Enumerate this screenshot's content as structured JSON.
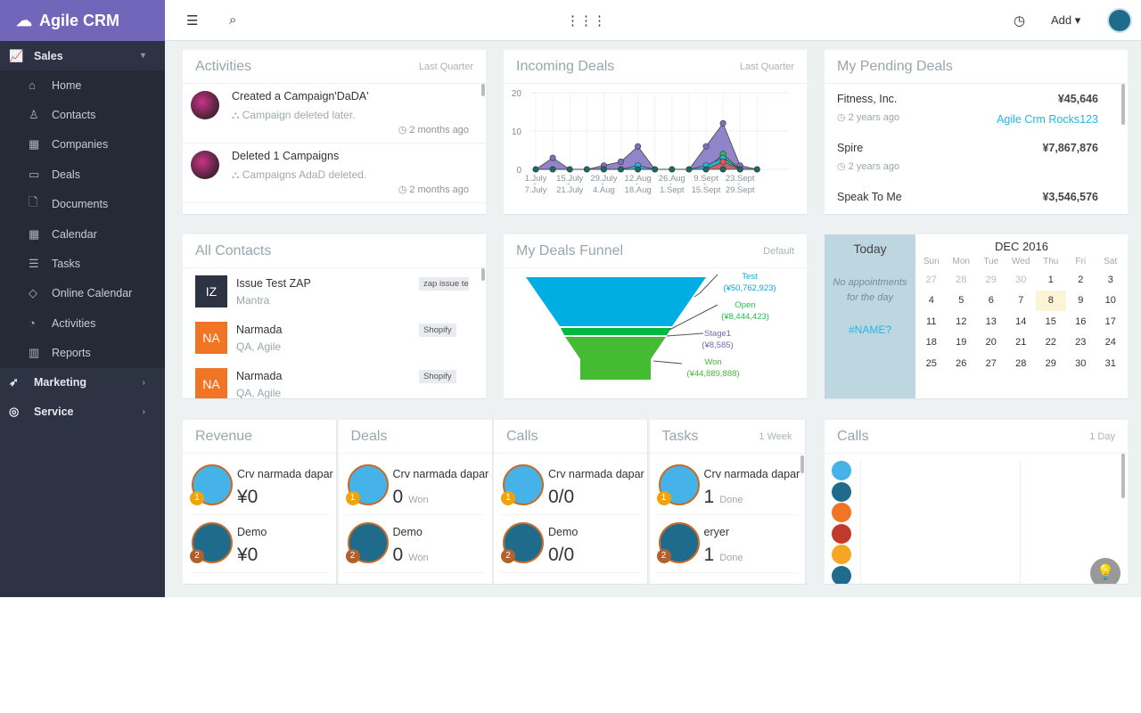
{
  "app": {
    "brand": "Agile CRM",
    "add_label": "Add"
  },
  "sidebar": {
    "groups": [
      {
        "label": "Sales",
        "icon": "chart-line-icon",
        "items": [
          {
            "label": "Home",
            "icon": "home-icon"
          },
          {
            "label": "Contacts",
            "icon": "user-icon"
          },
          {
            "label": "Companies",
            "icon": "building-icon"
          },
          {
            "label": "Deals",
            "icon": "money-icon"
          },
          {
            "label": "Documents",
            "icon": "file-icon"
          },
          {
            "label": "Calendar",
            "icon": "calendar-icon"
          },
          {
            "label": "Tasks",
            "icon": "list-icon"
          },
          {
            "label": "Online Calendar",
            "icon": "tag-icon"
          },
          {
            "label": "Activities",
            "icon": "gauge-icon"
          },
          {
            "label": "Reports",
            "icon": "bar-chart-icon"
          }
        ]
      },
      {
        "label": "Marketing",
        "icon": "rocket-icon"
      },
      {
        "label": "Service",
        "icon": "lifebuoy-icon"
      }
    ]
  },
  "activities": {
    "title": "Activities",
    "range": "Last Quarter",
    "items": [
      {
        "title": "Created a Campaign'DaDA'",
        "desc": "Campaign deleted later.",
        "time": "2 months ago"
      },
      {
        "title": "Deleted 1 Campaigns",
        "desc": "Campaigns AdaD deleted.",
        "time": "2 months ago"
      }
    ]
  },
  "incoming": {
    "title": "Incoming Deals",
    "range": "Last Quarter"
  },
  "chart_data": {
    "type": "area",
    "y_ticks": [
      0,
      10,
      20
    ],
    "ylim": [
      0,
      20
    ],
    "grid": true,
    "categories": [
      "1.July - 7.July",
      "",
      "15.July - 21.July",
      "",
      "29.July - 4.Aug",
      "",
      "12.Aug - 18.Aug",
      "",
      "26.Aug - 1.Sept",
      "",
      "9.Sept - 15.Sept",
      "",
      "23.Sept - 29.Sept",
      ""
    ],
    "series": [
      {
        "color": "#7e6fc0",
        "values": [
          0,
          3,
          0,
          0,
          1,
          2,
          6,
          0,
          0,
          0,
          6,
          12,
          1,
          0
        ]
      },
      {
        "color": "#27c24c",
        "values": [
          0,
          0,
          0,
          0,
          0,
          0,
          0,
          0,
          0,
          0,
          0,
          4,
          0,
          0
        ]
      },
      {
        "color": "#23b7e5",
        "values": [
          0,
          0,
          0,
          0,
          0,
          0,
          1,
          0,
          0,
          0,
          1,
          3,
          0,
          0
        ]
      },
      {
        "color": "#f05050",
        "values": [
          0,
          0,
          0,
          0,
          0,
          0,
          0,
          0,
          0,
          0,
          0,
          2,
          0,
          0
        ]
      },
      {
        "color": "#1a6b63",
        "values": [
          0,
          0,
          0,
          0,
          0,
          0,
          0,
          0,
          0,
          0,
          0,
          0,
          0,
          0
        ]
      }
    ]
  },
  "pending": {
    "title": "My Pending Deals",
    "items": [
      {
        "name": "Fitness, Inc.",
        "amount": "¥45,646",
        "time": "2 years ago",
        "owner": "Agile Crm Rocks123"
      },
      {
        "name": "Spire",
        "amount": "¥7,867,876",
        "time": "2 years ago",
        "owner": ""
      },
      {
        "name": "Speak To Me",
        "amount": "¥3,546,576",
        "time": "",
        "owner": ""
      }
    ]
  },
  "contacts": {
    "title": "All Contacts",
    "items": [
      {
        "initials": "IZ",
        "name": "Issue Test ZAP",
        "company": "Mantra",
        "tag": "zap issue test",
        "color": "#2e3344"
      },
      {
        "initials": "NA",
        "name": "Narmada",
        "company": "QA, Agile",
        "tag": "Shopify",
        "color": "#f07626"
      },
      {
        "initials": "NA",
        "name": "Narmada",
        "company": "QA, Agile",
        "tag": "Shopify",
        "color": "#f07626"
      }
    ]
  },
  "funnel": {
    "title": "My Deals Funnel",
    "option": "Default",
    "stages": [
      {
        "name": "Test",
        "value": "(¥50,762,923)",
        "color": "#00aee3"
      },
      {
        "name": "Open",
        "value": "(¥8,444,423)",
        "color": "#00b83f"
      },
      {
        "name": "Stage1",
        "value": "(¥8,585)",
        "color": "#7266ba"
      },
      {
        "name": "Won",
        "value": "(¥44,889,888)",
        "color": "#44bb33"
      }
    ]
  },
  "calendar": {
    "today_label": "Today",
    "empty": "No appointments for the day",
    "link": "#NAME?",
    "month": "DEC 2016",
    "days": [
      "Sun",
      "Mon",
      "Tue",
      "Wed",
      "Thu",
      "Fri",
      "Sat"
    ],
    "weeks": [
      [
        "27",
        "28",
        "29",
        "30",
        "1",
        "2",
        "3"
      ],
      [
        "4",
        "5",
        "6",
        "7",
        "8",
        "9",
        "10"
      ],
      [
        "11",
        "12",
        "13",
        "14",
        "15",
        "16",
        "17"
      ],
      [
        "18",
        "19",
        "20",
        "21",
        "22",
        "23",
        "24"
      ],
      [
        "25",
        "26",
        "27",
        "28",
        "29",
        "30",
        "31"
      ]
    ],
    "today": "8"
  },
  "leaderboard": {
    "range": "1 Week",
    "columns": [
      {
        "title": "Revenue",
        "rows": [
          {
            "name": "Crv narmada dapar",
            "value": "¥0",
            "unit": ""
          },
          {
            "name": "Demo",
            "value": "¥0",
            "unit": ""
          }
        ]
      },
      {
        "title": "Deals",
        "rows": [
          {
            "name": "Crv narmada dapar",
            "value": "0",
            "unit": "Won"
          },
          {
            "name": "Demo",
            "value": "0",
            "unit": "Won"
          }
        ]
      },
      {
        "title": "Calls",
        "rows": [
          {
            "name": "Crv narmada dapar",
            "value": "0/0",
            "unit": ""
          },
          {
            "name": "Demo",
            "value": "0/0",
            "unit": ""
          }
        ]
      },
      {
        "title": "Tasks",
        "rows": [
          {
            "name": "Crv narmada dapar",
            "value": "1",
            "unit": "Done"
          },
          {
            "name": "eryer",
            "value": "1",
            "unit": "Done"
          }
        ]
      }
    ]
  },
  "calls": {
    "title": "Calls",
    "range": "1 Day"
  }
}
